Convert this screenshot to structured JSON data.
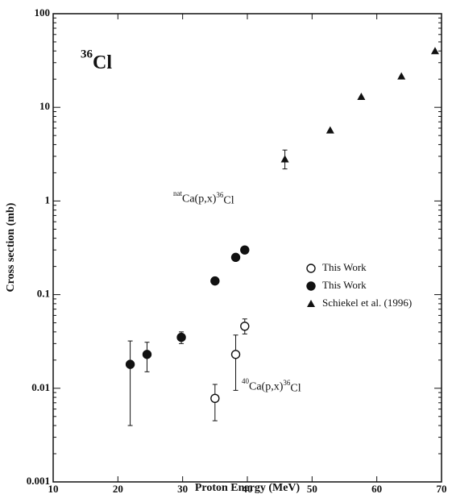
{
  "chart_data": {
    "type": "scatter",
    "x_label": "Proton Energy (MeV)",
    "y_label": "Cross section (mb)",
    "xlim": [
      10,
      70
    ],
    "xticks": [
      10,
      20,
      30,
      40,
      50,
      60,
      70
    ],
    "ylim": [
      0.001,
      100
    ],
    "yticks": [
      0.001,
      0.01,
      0.1,
      1,
      10,
      100
    ],
    "y_scale": "log",
    "legend": "center right",
    "annotations": [
      {
        "parts": [
          [
            "36",
            "Cl"
          ]
        ]
      },
      {
        "parts": [
          [
            "nat",
            "Ca(p,x)"
          ],
          [
            "36",
            "Cl"
          ]
        ]
      },
      {
        "parts": [
          [
            "40",
            "Ca(p,x)"
          ],
          [
            "36",
            "Cl"
          ]
        ]
      }
    ],
    "series": [
      {
        "name": "This Work",
        "marker": "open-circle",
        "color": "#111",
        "x": [
          35,
          38.2,
          39.6
        ],
        "values": [
          0.0078,
          0.023,
          0.046
        ],
        "y_low": [
          0.0045,
          0.0095,
          0.038
        ],
        "y_high": [
          0.011,
          0.037,
          0.055
        ]
      },
      {
        "name": "This Work",
        "marker": "circle",
        "color": "#111",
        "x": [
          21.9,
          24.5,
          29.8,
          35,
          38.2,
          39.6
        ],
        "values": [
          0.018,
          0.023,
          0.035,
          0.14,
          0.25,
          0.3
        ],
        "y_low": [
          0.004,
          0.015,
          0.03,
          null,
          null,
          null
        ],
        "y_high": [
          0.032,
          0.031,
          0.04,
          null,
          null,
          null
        ]
      },
      {
        "name": "Schiekel et al. (1996)",
        "marker": "triangle",
        "color": "#111",
        "x": [
          45.8,
          52.8,
          57.6,
          63.8,
          69
        ],
        "values": [
          2.8,
          5.7,
          13,
          21.5,
          40
        ],
        "y_low": [
          2.2,
          null,
          null,
          null,
          null
        ],
        "y_high": [
          3.5,
          null,
          null,
          null,
          null
        ]
      }
    ]
  }
}
